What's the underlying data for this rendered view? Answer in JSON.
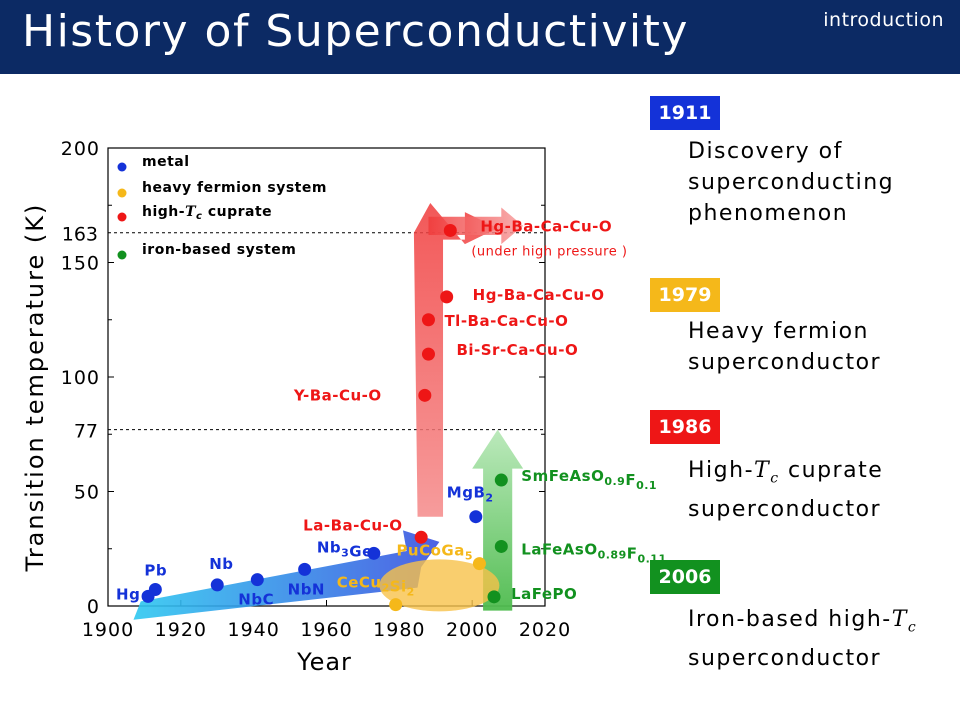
{
  "header": {
    "title": "History of Superconductivity",
    "section": "introduction"
  },
  "colors": {
    "metal": "#1432d8",
    "heavy_fermion": "#f5b81a",
    "cuprate": "#ee1616",
    "iron": "#12911f",
    "header_bg": "#0c2a64"
  },
  "timeline": [
    {
      "year": "1911",
      "color": "#1432d8",
      "desc_lines": [
        "Discovery of",
        "superconducting",
        "phenomenon"
      ]
    },
    {
      "year": "1979",
      "color": "#f5b81a",
      "desc_lines": [
        "Heavy fermion",
        "superconductor"
      ]
    },
    {
      "year": "1986",
      "color": "#ee1616",
      "desc_lines": [
        "High-T_c cuprate",
        "superconductor"
      ]
    },
    {
      "year": "2006",
      "color": "#12911f",
      "desc_lines": [
        "Iron-based high-T_c",
        "superconductor"
      ]
    }
  ],
  "chart_data": {
    "type": "scatter",
    "xlabel": "Year",
    "ylabel": "Transition temperature (K)",
    "xlim": [
      1900,
      2020
    ],
    "ylim": [
      0,
      200
    ],
    "x_ticks": [
      1900,
      1920,
      1940,
      1960,
      1980,
      2000,
      2020
    ],
    "y_ticks": [
      0,
      50,
      100,
      150,
      200
    ],
    "y_ticks_extra": [
      77,
      163
    ],
    "reference_lines": [
      77,
      163
    ],
    "grid": false,
    "legend": [
      {
        "key": "metal",
        "label": "metal",
        "color": "#1432d8"
      },
      {
        "key": "heavy_fermion",
        "label": "heavy fermion system",
        "color": "#f5b81a"
      },
      {
        "key": "cuprate",
        "label": "high-T_c cuprate",
        "color": "#ee1616"
      },
      {
        "key": "iron",
        "label": "iron-based system",
        "color": "#12911f"
      }
    ],
    "legend_position": "top-left",
    "series": [
      {
        "key": "metal",
        "points": [
          {
            "label": "Hg",
            "x": 1911,
            "y": 4.2
          },
          {
            "label": "Pb",
            "x": 1913,
            "y": 7.2
          },
          {
            "label": "Nb",
            "x": 1930,
            "y": 9.2
          },
          {
            "label": "NbC",
            "x": 1941,
            "y": 11.5
          },
          {
            "label": "NbN",
            "x": 1954,
            "y": 16
          },
          {
            "label": "Nb₃Ge",
            "x": 1973,
            "y": 23
          },
          {
            "label": "MgB₂",
            "x": 2001,
            "y": 39
          }
        ]
      },
      {
        "key": "heavy_fermion",
        "points": [
          {
            "label": "CeCu₂Si₂",
            "x": 1979,
            "y": 0.6
          },
          {
            "label": "PuCoGa₅",
            "x": 2002,
            "y": 18.5
          }
        ]
      },
      {
        "key": "cuprate",
        "points": [
          {
            "label": "La-Ba-Cu-O",
            "x": 1986,
            "y": 30
          },
          {
            "label": "Y-Ba-Cu-O",
            "x": 1987,
            "y": 92
          },
          {
            "label": "Bi-Sr-Ca-Cu-O",
            "x": 1988,
            "y": 110
          },
          {
            "label": "Tl-Ba-Ca-Cu-O",
            "x": 1988,
            "y": 125
          },
          {
            "label": "Hg-Ba-Ca-Cu-O",
            "x": 1993,
            "y": 135
          },
          {
            "label": "Hg-Ba-Ca-Cu-O (under high pressure)",
            "x": 1994,
            "y": 164
          }
        ]
      },
      {
        "key": "iron",
        "points": [
          {
            "label": "LaFePO",
            "x": 2006,
            "y": 4
          },
          {
            "label": "LaFeAsO₀.₈₉F₀.₁₁",
            "x": 2008,
            "y": 26
          },
          {
            "label": "SmFeAsO₀.₉F₀.₁",
            "x": 2008,
            "y": 55
          }
        ]
      }
    ]
  }
}
